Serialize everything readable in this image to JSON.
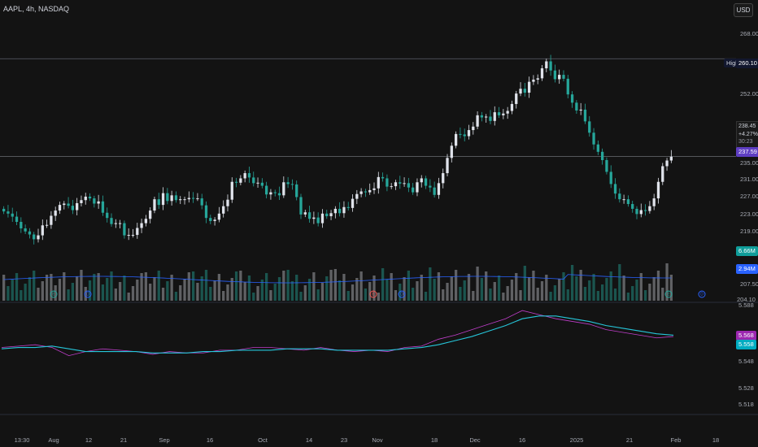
{
  "header": {
    "symbol_label": "AAPL, 4h, NASDAQ",
    "currency": "USD"
  },
  "price_axis": {
    "labels": [
      "268.00",
      "252.00",
      "235.00",
      "231.00",
      "227.00",
      "223.00",
      "219.00",
      "207.50",
      "204.10"
    ]
  },
  "indicator_axis": {
    "labels": [
      "5.588",
      "5.548",
      "5.528",
      "5.518"
    ]
  },
  "time_axis": {
    "labels": [
      "13:30",
      "Aug",
      "12",
      "21",
      "Sep",
      "16",
      "Oct",
      "14",
      "23",
      "Nov",
      "18",
      "Dec",
      "16",
      "2025",
      "21",
      "Feb",
      "18"
    ]
  },
  "tags": {
    "high_label": "High",
    "high_value": "260.10",
    "last_price": "238.45",
    "change_pct": "+4.27%",
    "countdown": "30:23",
    "current_line": "237.59",
    "volume_a": "6.66M",
    "volume_b": "2.94M",
    "ind_a": "5.568",
    "ind_b": "5.558"
  },
  "event_markers": [
    {
      "letter": "E",
      "color": "#26a69a"
    },
    {
      "letter": "D",
      "color": "#2962ff"
    },
    {
      "letter": "E",
      "color": "#ef5350"
    },
    {
      "letter": "D",
      "color": "#2962ff"
    },
    {
      "letter": "E",
      "color": "#26a69a"
    },
    {
      "letter": "D",
      "color": "#2962ff"
    }
  ],
  "colors": {
    "background": "#131313",
    "up_candle": "#e0e3eb",
    "down_candle": "#26a69a",
    "rsi_line": "#c13ecb",
    "rsi_ma": "#26c6da",
    "volume_ma": "#2962ff",
    "high_line": "#5d606b",
    "current_tag": "#5e3ec2"
  },
  "chart_data": [
    {
      "type": "candlestick",
      "symbol": "AAPL",
      "interval": "4h",
      "exchange": "NASDAQ",
      "y_range": [
        204.1,
        268.0
      ],
      "period_high": 260.1,
      "last_close": 237.59,
      "series": [
        {
          "name": "close",
          "values": [
            225,
            224.5,
            223.8,
            222.6,
            221.1,
            220.4,
            219.7,
            218.6,
            219.5,
            221.8,
            221.9,
            224,
            225.2,
            226.5,
            226.8,
            226.3,
            225.3,
            226.9,
            227.6,
            228.4,
            228,
            226.8,
            227.3,
            224.7,
            223.5,
            222.1,
            222.3,
            222.3,
            219.5,
            219.6,
            219.6,
            221.2,
            222.3,
            223.3,
            225.2,
            227.8,
            226.5,
            229.2,
            227.4,
            228.7,
            227.6,
            227.8,
            227.8,
            228.1,
            228,
            228,
            226.4,
            223.5,
            222.8,
            223.1,
            224.5,
            226.2,
            227.7,
            231.8,
            231.6,
            232.6,
            233.8,
            232.8,
            231.5,
            231.6,
            230.9,
            228.9,
            229.4,
            229.2,
            228.7,
            231.7,
            231.3,
            231.2,
            228.3,
            224.3,
            224.8,
            223.3,
            223.6,
            222.3,
            224.5,
            223.9,
            224.6,
            225.6,
            224.6,
            226,
            225.8,
            227.9,
            229,
            229.6,
            229.4,
            229.9,
            230.3,
            232.9,
            232.6,
            230.7,
            230.8,
            231.7,
            231.4,
            231.5,
            230.5,
            229.4,
            231.7,
            232.6,
            230.9,
            230.5,
            228.8,
            231.5,
            233.8,
            237.3,
            240.1,
            242.8,
            242.7,
            242.3,
            243.7,
            244.5,
            247.1,
            246.6,
            246.8,
            245.8,
            247.8,
            247.1,
            247.5,
            248.1,
            249.7,
            252.1,
            253.2,
            252.3,
            254.8,
            255.3,
            255.6,
            257.9,
            259.5,
            257.4,
            255.4,
            256.4,
            255.5,
            251.9,
            250,
            248.2,
            248.4,
            245.7,
            243.1,
            240.4,
            238.7,
            236.8,
            234.1,
            231.3,
            229.1,
            227.8,
            227.8,
            226.7,
            225.6,
            224.4,
            225.3,
            225.1,
            226.2,
            228,
            231.8,
            235.4,
            236.7,
            237.6
          ]
        }
      ]
    },
    {
      "type": "line",
      "name": "indicator",
      "y_range": [
        5.51,
        5.592
      ],
      "series": [
        {
          "name": "indicator",
          "values": [
            5.559,
            5.56,
            5.561,
            5.559,
            5.553,
            5.556,
            5.558,
            5.557,
            5.556,
            5.554,
            5.556,
            5.555,
            5.555,
            5.557,
            5.557,
            5.559,
            5.559,
            5.558,
            5.557,
            5.559,
            5.557,
            5.556,
            5.557,
            5.556,
            5.559,
            5.56,
            5.565,
            5.568,
            5.572,
            5.576,
            5.58,
            5.586,
            5.583,
            5.58,
            5.578,
            5.576,
            5.572,
            5.57,
            5.568,
            5.566,
            5.567
          ]
        },
        {
          "name": "ma",
          "values": [
            5.558,
            5.559,
            5.559,
            5.56,
            5.558,
            5.556,
            5.556,
            5.556,
            5.556,
            5.555,
            5.555,
            5.555,
            5.556,
            5.556,
            5.557,
            5.557,
            5.557,
            5.558,
            5.558,
            5.558,
            5.557,
            5.557,
            5.557,
            5.557,
            5.558,
            5.559,
            5.561,
            5.564,
            5.567,
            5.571,
            5.575,
            5.58,
            5.582,
            5.582,
            5.58,
            5.578,
            5.575,
            5.573,
            5.571,
            5.569,
            5.568
          ]
        }
      ]
    }
  ]
}
